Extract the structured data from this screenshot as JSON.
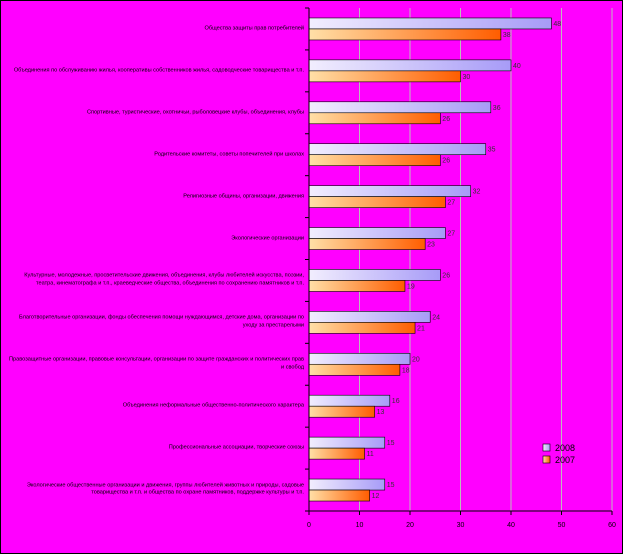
{
  "chart_data": {
    "type": "bar",
    "orientation": "horizontal",
    "xlim": [
      0,
      60
    ],
    "xticks": [
      0,
      10,
      20,
      30,
      40,
      50,
      60
    ],
    "grid": true,
    "legend_placement": "right",
    "categories": [
      "Общества защиты прав потребителей",
      "Объединения по обслуживанию жилья, кооперативы собственников жилья, садоводческие товарищества и т.п.",
      "Спортивные, туристические, охотничьи, рыболовецкие клубы, объединения, клубы",
      "Родительские комитеты, советы попечителей при школах",
      "Религиозные общины, организации, движения",
      "Экологические организации",
      "Культурные, молодежные, просветительские движения, объединения, клубы любителей искусства, поэзии, театра, кинематографа и т.п., краеведческие общества, объединения по сохранению памятников и т.п.",
      "Благотворительные организации, фонды обеспечения помощи нуждающимся, детские дома, организации по уходу за престарелыми",
      "Правозащитные организации, правовые консультации, организации по защите гражданских и политических прав и свобод",
      "Объединения неформальные общественно-политического характера",
      "Профессиональные ассоциации, творческие союзы",
      "Экологические общественные организации и движения, группы любителей животных и природы, садовые товарищества и т.п. и общества по охране памятников, поддержке культуры и т.п."
    ],
    "series": [
      {
        "name": "2008",
        "values": [
          48,
          40,
          36,
          35,
          32,
          27,
          26,
          24,
          20,
          16,
          15,
          15
        ]
      },
      {
        "name": "2007",
        "values": [
          38,
          30,
          26,
          26,
          27,
          23,
          19,
          21,
          18,
          13,
          11,
          12
        ]
      }
    ]
  },
  "colors": {
    "background": "#ff00ff",
    "series_2008_light": "#f2eefe",
    "series_2008_dark": "#a79bf7",
    "series_2007_light": "#ffe0a8",
    "series_2007_dark": "#ff5d00",
    "grid": "#bcbcbc"
  }
}
